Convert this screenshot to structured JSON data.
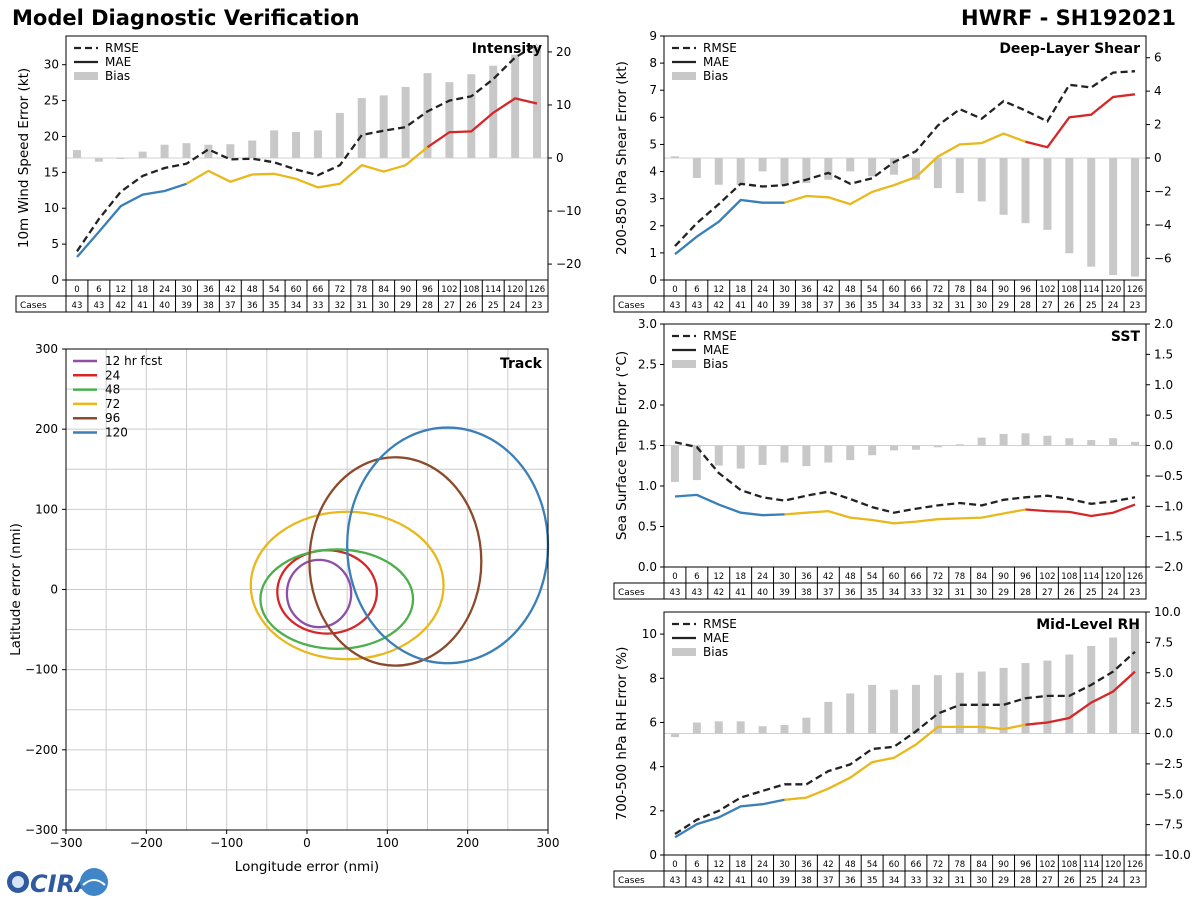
{
  "header": {
    "title": "Model Diagnostic Verification",
    "storm": "HWRF - SH192021"
  },
  "logo_text": "CIRA",
  "colors": {
    "rmse": "#222222",
    "bias": "#c8c8c8",
    "blue": "#3a7fb8",
    "yellow": "#e8b81c",
    "red": "#d62728",
    "grid": "#cccccc"
  },
  "leads": [
    0,
    6,
    12,
    18,
    24,
    30,
    36,
    42,
    48,
    54,
    60,
    66,
    72,
    78,
    84,
    90,
    96,
    102,
    108,
    114,
    120,
    126
  ],
  "cases": [
    43,
    43,
    42,
    41,
    40,
    39,
    38,
    37,
    36,
    35,
    34,
    33,
    32,
    31,
    30,
    29,
    28,
    27,
    26,
    25,
    24,
    23
  ],
  "cases_label": "Cases",
  "legend_labels": {
    "rmse": "RMSE",
    "mae": "MAE",
    "bias": "Bias"
  },
  "chart_data": [
    {
      "type": "line",
      "title": "Intensity",
      "ylabel": "10m Wind Speed Error (kt)",
      "ylim": [
        0,
        34
      ],
      "yticks": [
        0,
        5,
        10,
        15,
        20,
        25,
        30
      ],
      "y2lim": [
        -23,
        23
      ],
      "y2ticks": [
        -20,
        -10,
        0,
        10,
        20
      ],
      "rmse": [
        4.0,
        8.5,
        12.3,
        14.5,
        15.6,
        16.2,
        18.2,
        16.8,
        16.9,
        16.4,
        15.4,
        14.6,
        16.0,
        20.2,
        20.8,
        21.3,
        23.5,
        25.0,
        25.6,
        28.0,
        31.0,
        32.8
      ],
      "mae": [
        3.2,
        6.7,
        10.3,
        11.9,
        12.4,
        13.4,
        15.2,
        13.7,
        14.7,
        14.8,
        14.1,
        12.9,
        13.4,
        16.0,
        15.1,
        16.0,
        18.5,
        20.6,
        20.7,
        23.3,
        25.3,
        24.6
      ],
      "bias": [
        1.5,
        -0.7,
        -0.1,
        1.2,
        2.5,
        2.8,
        2.5,
        2.6,
        3.3,
        5.2,
        4.9,
        5.2,
        8.5,
        11.3,
        11.8,
        13.4,
        16.0,
        14.3,
        15.8,
        17.4,
        19.5,
        21.0
      ]
    },
    {
      "type": "line",
      "title": "Deep-Layer Shear",
      "ylabel": "200-850 hPa Shear Error (kt)",
      "ylim": [
        0,
        9
      ],
      "yticks": [
        0,
        1,
        2,
        3,
        4,
        5,
        6,
        7,
        8,
        9
      ],
      "y2lim": [
        -7.3,
        7.3
      ],
      "y2ticks": [
        -6,
        -4,
        -2,
        0,
        2,
        4,
        6
      ],
      "rmse": [
        1.25,
        2.1,
        2.8,
        3.55,
        3.45,
        3.5,
        3.7,
        3.95,
        3.55,
        3.75,
        4.35,
        4.75,
        5.7,
        6.3,
        5.95,
        6.6,
        6.25,
        5.85,
        7.2,
        7.1,
        7.65,
        7.7
      ],
      "mae": [
        0.95,
        1.6,
        2.15,
        2.95,
        2.85,
        2.85,
        3.1,
        3.05,
        2.8,
        3.25,
        3.5,
        3.8,
        4.55,
        5.0,
        5.05,
        5.4,
        5.1,
        4.9,
        6.0,
        6.1,
        6.75,
        6.85
      ],
      "bias": [
        0.1,
        -1.2,
        -1.6,
        -1.6,
        -0.8,
        -1.6,
        -1.5,
        -1.3,
        -0.8,
        -1.1,
        -1.0,
        -1.3,
        -1.8,
        -2.1,
        -2.6,
        -3.4,
        -3.9,
        -4.3,
        -5.7,
        -6.5,
        -7.0,
        -7.1
      ]
    },
    {
      "type": "line",
      "title": "SST",
      "ylabel": "Sea Surface Temp Error (°C)",
      "ylim": [
        0,
        3.0
      ],
      "yticks": [
        0.0,
        0.5,
        1.0,
        1.5,
        2.0,
        2.5,
        3.0
      ],
      "y2lim": [
        -2.0,
        2.0
      ],
      "y2ticks": [
        -2.0,
        -1.5,
        -1.0,
        -0.5,
        0.0,
        0.5,
        1.0,
        1.5,
        2.0
      ],
      "rmse": [
        1.54,
        1.48,
        1.16,
        0.95,
        0.86,
        0.82,
        0.88,
        0.93,
        0.84,
        0.74,
        0.67,
        0.72,
        0.76,
        0.79,
        0.76,
        0.83,
        0.86,
        0.88,
        0.84,
        0.78,
        0.81,
        0.86
      ],
      "mae": [
        0.87,
        0.89,
        0.77,
        0.67,
        0.64,
        0.65,
        0.67,
        0.69,
        0.61,
        0.58,
        0.54,
        0.56,
        0.59,
        0.6,
        0.61,
        0.66,
        0.71,
        0.69,
        0.68,
        0.63,
        0.67,
        0.77
      ],
      "bias": [
        -0.6,
        -0.57,
        -0.33,
        -0.38,
        -0.32,
        -0.28,
        -0.34,
        -0.28,
        -0.24,
        -0.16,
        -0.08,
        -0.07,
        -0.03,
        0.02,
        0.13,
        0.19,
        0.2,
        0.16,
        0.12,
        0.09,
        0.12,
        0.06
      ]
    },
    {
      "type": "line",
      "title": "Mid-Level RH",
      "ylabel": "700-500 hPa RH Error (%)",
      "ylim": [
        0,
        11.0
      ],
      "yticks": [
        0,
        2,
        4,
        6,
        8,
        10
      ],
      "y2lim": [
        -10.0,
        10.0
      ],
      "y2ticks": [
        -10.0,
        -7.5,
        -5.0,
        -2.5,
        0.0,
        2.5,
        5.0,
        7.5,
        10.0
      ],
      "rmse": [
        0.95,
        1.6,
        2.0,
        2.6,
        2.9,
        3.2,
        3.2,
        3.8,
        4.1,
        4.8,
        4.9,
        5.6,
        6.4,
        6.8,
        6.8,
        6.8,
        7.1,
        7.2,
        7.2,
        7.7,
        8.3,
        9.2
      ],
      "mae": [
        0.8,
        1.4,
        1.7,
        2.2,
        2.3,
        2.5,
        2.6,
        3.0,
        3.5,
        4.2,
        4.4,
        5.0,
        5.8,
        5.8,
        5.8,
        5.7,
        5.9,
        6.0,
        6.2,
        6.9,
        7.4,
        8.3
      ],
      "bias": [
        -0.3,
        0.9,
        1.0,
        1.0,
        0.6,
        0.7,
        1.3,
        2.6,
        3.3,
        4.0,
        3.6,
        4.0,
        4.8,
        5.0,
        5.1,
        5.4,
        5.8,
        6.0,
        6.5,
        7.2,
        7.9,
        9.0
      ]
    },
    {
      "type": "scatter",
      "title": "Track",
      "xlabel": "Longitude error (nmi)",
      "ylabel": "Latitude error (nmi)",
      "xlim": [
        -300,
        300
      ],
      "ylim": [
        -300,
        300
      ],
      "xticks": [
        -300,
        -200,
        -100,
        0,
        100,
        200,
        300
      ],
      "yticks": [
        -300,
        -200,
        -100,
        0,
        100,
        200,
        300
      ],
      "ellipses": [
        {
          "name": "12 hr fcst",
          "cx": 15,
          "cy": -5,
          "rx": 40,
          "ry": 42,
          "color": "#8e4fa6"
        },
        {
          "name": "24",
          "cx": 25,
          "cy": -3,
          "rx": 62,
          "ry": 52,
          "color": "#d62728"
        },
        {
          "name": "48",
          "cx": 37,
          "cy": -12,
          "rx": 95,
          "ry": 62,
          "color": "#4cae4c"
        },
        {
          "name": "72",
          "cx": 50,
          "cy": 5,
          "rx": 120,
          "ry": 92,
          "color": "#e8b81c"
        },
        {
          "name": "96",
          "cx": 110,
          "cy": 35,
          "rx": 107,
          "ry": 130,
          "color": "#8b4a2b"
        },
        {
          "name": "120",
          "cx": 175,
          "cy": 55,
          "rx": 125,
          "ry": 147,
          "color": "#3a7fb8"
        }
      ]
    }
  ]
}
